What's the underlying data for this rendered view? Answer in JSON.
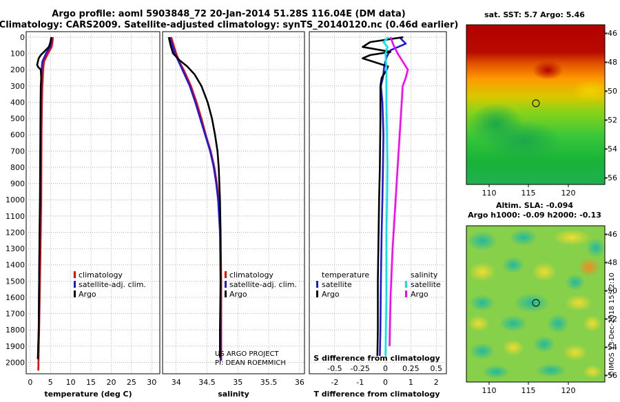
{
  "header": {
    "title_line1": "Argo profile: aoml 5903848_72 20-Jan-2014 51.28S 116.04E (DM data)",
    "title_line2": "Climatology: CARS2009. Satellite-adjusted climatology: synTS_20140120.nc (0.46d earlier)"
  },
  "colors": {
    "climatology": "#ff0000",
    "satellite": "#1a1adc",
    "argo": "#000000",
    "sat_salinity": "#00e5e5",
    "argo_salinity": "#ff00ff"
  },
  "depth_axis": {
    "ticks": [
      "0",
      "100",
      "200",
      "300",
      "400",
      "500",
      "600",
      "700",
      "800",
      "900",
      "1000",
      "1100",
      "1200",
      "1300",
      "1400",
      "1500",
      "1600",
      "1700",
      "1800",
      "1900",
      "2000"
    ],
    "ylim": [
      0,
      2070
    ]
  },
  "chart_data": [
    {
      "type": "line",
      "name": "temperature-panel",
      "xlabel": "temperature (deg C)",
      "xlim": [
        -1,
        32
      ],
      "xticks": [
        "0",
        "5",
        "10",
        "15",
        "20",
        "25",
        "30"
      ],
      "legend": [
        "climatology",
        "satellite-adj. clim.",
        "Argo"
      ],
      "series": [
        {
          "name": "climatology",
          "color": "#ff0000",
          "depth": [
            0,
            30,
            60,
            100,
            150,
            200,
            300,
            400,
            600,
            800,
            1000,
            1200,
            1500,
            1800,
            2050
          ],
          "values": [
            5.6,
            5.5,
            5.3,
            4.4,
            3.4,
            3.2,
            3.0,
            2.9,
            2.8,
            2.75,
            2.7,
            2.6,
            2.4,
            2.2,
            2.0
          ]
        },
        {
          "name": "satellite-adj. clim.",
          "color": "#1a1adc",
          "depth": [
            0,
            30,
            60,
            100,
            150,
            200,
            300,
            400,
            600,
            800,
            1000,
            1200,
            1500,
            1800,
            1980
          ],
          "values": [
            5.3,
            5.2,
            4.9,
            3.9,
            3.0,
            2.8,
            2.7,
            2.6,
            2.55,
            2.5,
            2.45,
            2.35,
            2.2,
            2.1,
            1.9
          ]
        },
        {
          "name": "Argo",
          "color": "#000000",
          "depth": [
            0,
            30,
            60,
            90,
            110,
            130,
            150,
            170,
            185,
            200,
            250,
            300,
            400,
            600,
            800,
            1000,
            1200,
            1500,
            1800,
            1980
          ],
          "values": [
            5.2,
            5.0,
            4.6,
            3.4,
            2.6,
            2.1,
            1.9,
            1.7,
            2.0,
            2.6,
            2.7,
            2.6,
            2.55,
            2.5,
            2.45,
            2.4,
            2.3,
            2.2,
            2.1,
            1.9
          ]
        }
      ]
    },
    {
      "type": "line",
      "name": "salinity-panel",
      "xlabel": "salinity",
      "xlim": [
        33.78,
        36.08
      ],
      "xticks": [
        "34",
        "34.5",
        "35",
        "35.5",
        "36"
      ],
      "legend": [
        "climatology",
        "satellite-adj. clim.",
        "Argo"
      ],
      "annotation": [
        "US ARGO PROJECT",
        "PI: DEAN ROEMMICH"
      ],
      "series": [
        {
          "name": "climatology",
          "color": "#ff0000",
          "depth": [
            0,
            50,
            100,
            150,
            200,
            300,
            400,
            500,
            600,
            700,
            800,
            900,
            1000,
            1200,
            1500,
            1800,
            1990
          ],
          "values": [
            33.92,
            33.96,
            34.0,
            34.05,
            34.12,
            34.24,
            34.33,
            34.41,
            34.48,
            34.56,
            34.62,
            34.66,
            34.69,
            34.72,
            34.73,
            34.73,
            34.73
          ]
        },
        {
          "name": "satellite-adj. clim.",
          "color": "#1a1adc",
          "depth": [
            0,
            50,
            100,
            150,
            200,
            300,
            400,
            500,
            600,
            700,
            800,
            900,
            1000,
            1200,
            1500,
            1800,
            1990
          ],
          "values": [
            33.9,
            33.94,
            33.98,
            34.04,
            34.1,
            34.22,
            34.31,
            34.39,
            34.47,
            34.55,
            34.61,
            34.65,
            34.68,
            34.71,
            34.72,
            34.72,
            34.72
          ]
        },
        {
          "name": "Argo",
          "color": "#000000",
          "depth": [
            0,
            50,
            100,
            140,
            180,
            230,
            300,
            400,
            500,
            600,
            700,
            800,
            900,
            1000,
            1200,
            1500,
            1800,
            1970
          ],
          "values": [
            33.88,
            33.91,
            33.95,
            34.05,
            34.18,
            34.3,
            34.41,
            34.51,
            34.58,
            34.63,
            34.67,
            34.69,
            34.7,
            34.71,
            34.72,
            34.72,
            34.71,
            34.71
          ]
        }
      ]
    },
    {
      "type": "line",
      "name": "difference-panel",
      "xlabel": "T difference from climatology",
      "xlabel_top": "S difference from climatology",
      "xlim": [
        -3,
        2.4
      ],
      "xticks": [
        "-2",
        "-1",
        "0",
        "1",
        "2"
      ],
      "xticks_s": [
        "-0.5",
        "-0.25",
        "0",
        "0.25",
        "0.5"
      ],
      "legend_temperature": {
        "title": "temperature",
        "items": [
          "satellite",
          "Argo"
        ]
      },
      "legend_salinity": {
        "title": "salinity",
        "items": [
          "satellite",
          "Argo"
        ]
      },
      "series": [
        {
          "name": "T satellite",
          "color": "#1a1adc",
          "depth": [
            0,
            40,
            80,
            120,
            180,
            250,
            300,
            400,
            600,
            800,
            1000,
            1200,
            1500,
            1800,
            1960
          ],
          "values": [
            0.55,
            0.8,
            0.2,
            0.05,
            -0.05,
            -0.1,
            -0.18,
            -0.12,
            -0.08,
            -0.1,
            -0.12,
            -0.15,
            -0.18,
            -0.2,
            -0.22
          ]
        },
        {
          "name": "T Argo",
          "color": "#000000",
          "depth": [
            0,
            30,
            60,
            90,
            110,
            130,
            160,
            180,
            200,
            250,
            300,
            500,
            800,
            1000,
            1300,
            1500,
            1800,
            1960
          ],
          "values": [
            0.7,
            -0.6,
            -0.9,
            0.2,
            -0.6,
            -0.9,
            -0.3,
            0.1,
            0.05,
            -0.15,
            -0.2,
            -0.2,
            -0.22,
            -0.25,
            -0.28,
            -0.3,
            -0.3,
            -0.32
          ]
        },
        {
          "name": "S satellite",
          "color": "#00e5e5",
          "depth": [
            0,
            30,
            60,
            100,
            200,
            400,
            800,
            1200,
            1600,
            1960
          ],
          "values": [
            0.03,
            -0.02,
            0.02,
            0.0,
            0.01,
            0.01,
            0.02,
            0.01,
            0.01,
            0.0
          ]
        },
        {
          "name": "S Argo",
          "color": "#ff00ff",
          "depth": [
            0,
            50,
            100,
            150,
            200,
            250,
            300,
            500,
            800,
            1000,
            1300,
            1600,
            1900
          ],
          "values": [
            0.05,
            0.08,
            0.12,
            0.17,
            0.22,
            0.2,
            0.17,
            0.15,
            0.12,
            0.1,
            0.07,
            0.05,
            0.04
          ]
        }
      ]
    }
  ],
  "sst_map": {
    "title": "sat. SST: 5.7 Argo: 5.46",
    "lat_ticks": [
      "-46",
      "-48",
      "-50",
      "-52",
      "-54",
      "-56"
    ],
    "lon_ticks": [
      "110",
      "115",
      "120"
    ]
  },
  "sla_map": {
    "title_line1": "Altim. SLA: -0.094",
    "title_line2": "Argo h1000: -0.09 h2000: -0.13",
    "lat_ticks": [
      "-46",
      "-48",
      "-50",
      "-52",
      "-54",
      "-56"
    ],
    "lon_ticks": [
      "110",
      "115",
      "120"
    ]
  },
  "credit": "©IMOS 13-Dec-2018 15:12:10"
}
